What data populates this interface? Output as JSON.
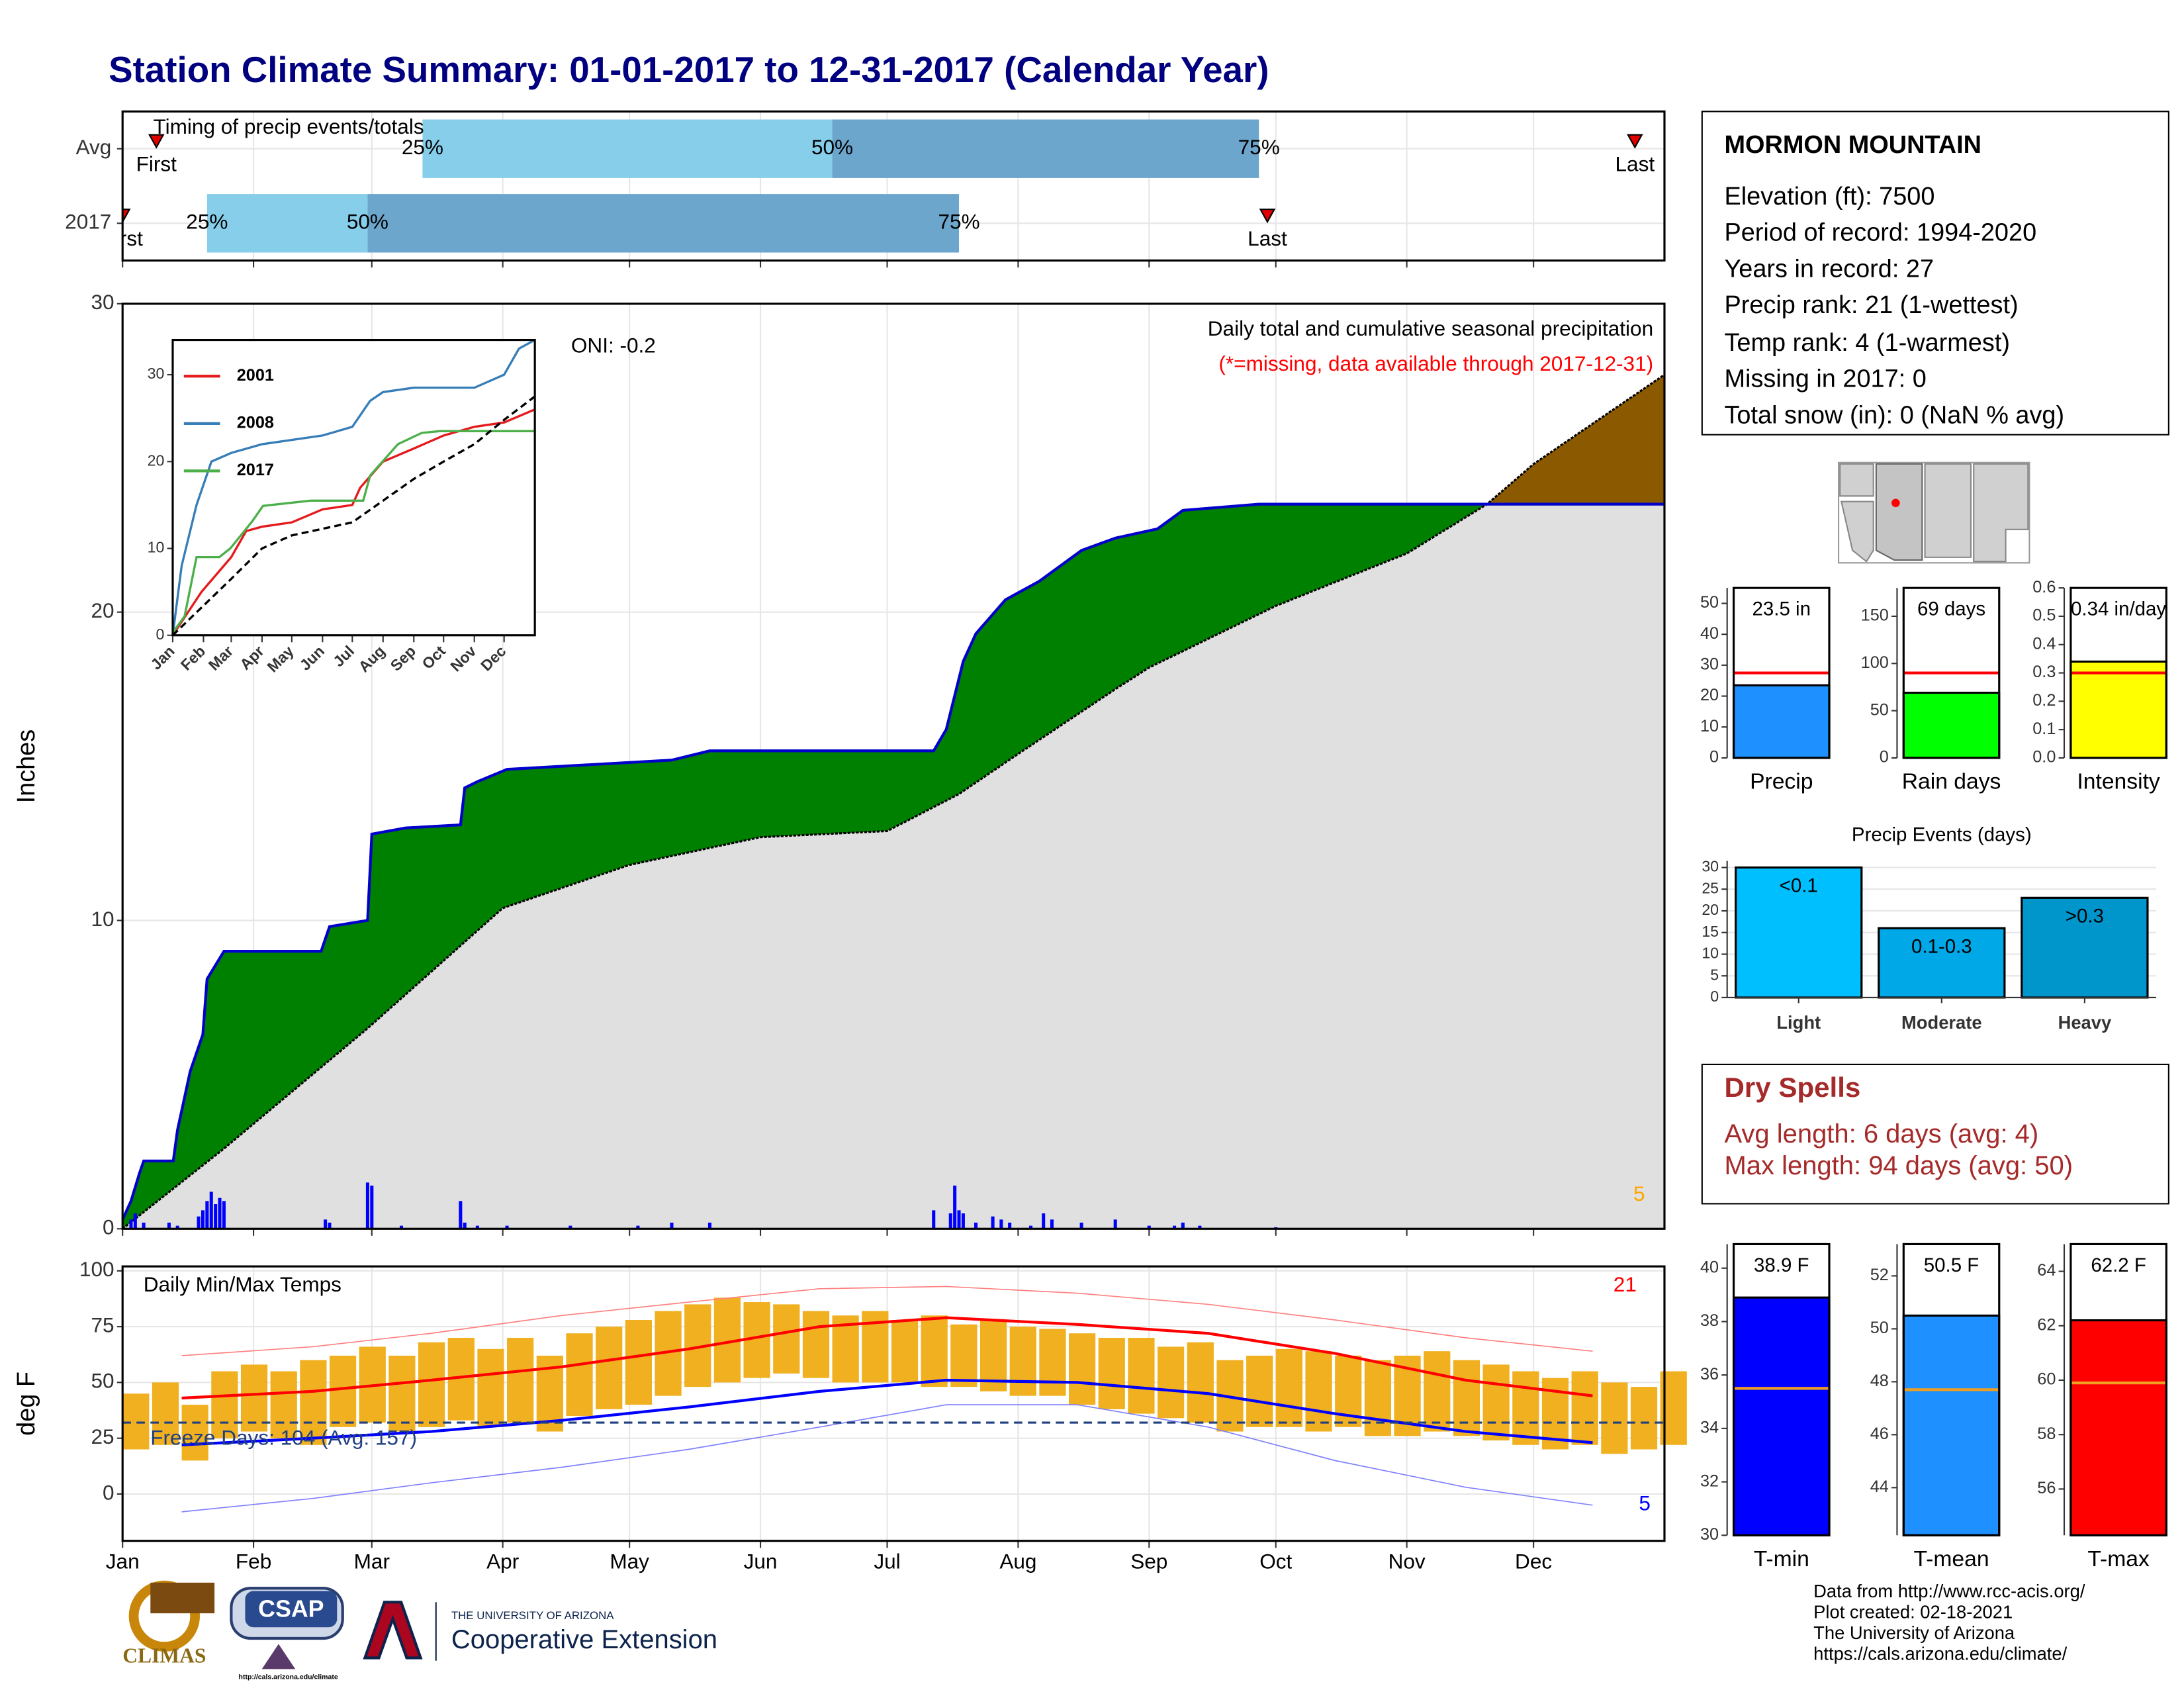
{
  "title": "Station Climate Summary: 01-01-2017 to 12-31-2017 (Calendar Year)",
  "station": {
    "name": "MORMON MOUNTAIN",
    "lines": [
      "Elevation (ft): 7500",
      "Period of record: 1994-2020",
      "Years in record: 27",
      "Precip rank: 21 (1-wettest)",
      "Temp rank: 4 (1-warmest)",
      "Missing in 2017: 0",
      "Total snow (in): 0 (NaN % avg)"
    ]
  },
  "dry_spells": {
    "title": "Dry Spells",
    "lines": [
      "Avg length: 6 days (avg: 4)",
      "Max length: 94 days (avg: 50)"
    ]
  },
  "credits": [
    "Data from http://www.rcc-acis.org/",
    "Plot created: 02-18-2021",
    "The University of Arizona",
    "https://cals.arizona.edu/climate/"
  ],
  "logos": {
    "climas": "CLIMAS",
    "csap": "CSAP",
    "url": "http://cals.arizona.edu/climate",
    "university": "THE UNIVERSITY OF ARIZONA",
    "extension": "Cooperative Extension"
  },
  "chart_data": [
    {
      "type": "timing",
      "title": "Timing of precip events/totals",
      "categories": [
        "Avg",
        "2017"
      ],
      "series": [
        {
          "name": "First",
          "values": [
            9,
            1
          ]
        },
        {
          "name": "25%",
          "values": [
            72,
            21
          ]
        },
        {
          "name": "50%",
          "values": [
            169,
            59
          ]
        },
        {
          "name": "75%",
          "values": [
            270,
            199
          ]
        },
        {
          "name": "Last",
          "values": [
            359,
            272
          ]
        }
      ],
      "colors": [
        "#87ceeb",
        "#6ca6cd"
      ],
      "marker_color": "#e00000",
      "xlim": [
        1,
        366
      ],
      "xticks": [
        1,
        32,
        60,
        91,
        121,
        152,
        182,
        213,
        244,
        274,
        305,
        335
      ],
      "grid": true
    },
    {
      "type": "cumulative",
      "y_label": "Inches",
      "annotations": [
        "ONI: -0.2",
        "Daily total and cumulative seasonal precipitation",
        "(*=missing, data available through 2017-12-31)",
        "5"
      ],
      "annotation_colors": [
        "#000000",
        "#000000",
        "#ff0000",
        "#ffa500"
      ],
      "xlim": [
        1,
        366
      ],
      "ylim": [
        0,
        30
      ],
      "yticks": [
        0,
        10,
        20,
        30
      ],
      "xticks": [
        1,
        32,
        60,
        91,
        121,
        152,
        182,
        213,
        244,
        274,
        305,
        335
      ],
      "grid": true,
      "above_color": "#008000",
      "below_color": "#8b5a00",
      "normal_fill": "#e0e0e0",
      "observed": {
        "color": "#0000cc",
        "x": [
          1,
          3,
          5,
          6,
          13,
          14,
          17,
          20,
          21,
          25,
          48,
          50,
          59,
          60,
          68,
          81,
          82,
          85,
          92,
          131,
          140,
          193,
          196,
          200,
          203,
          210,
          218,
          228,
          236,
          246,
          252,
          270,
          366
        ],
        "values": [
          0.3,
          0.9,
          1.8,
          2.2,
          2.2,
          3.2,
          5.1,
          6.3,
          8.1,
          9.0,
          9.0,
          9.8,
          10.0,
          12.8,
          13.0,
          13.1,
          14.3,
          14.5,
          14.9,
          15.2,
          15.5,
          15.5,
          16.2,
          18.4,
          19.3,
          20.4,
          21.0,
          22.0,
          22.4,
          22.7,
          23.3,
          23.5,
          23.5
        ]
      },
      "normal": {
        "color": "#000000",
        "x": [
          1,
          25,
          59,
          91,
          121,
          152,
          182,
          199,
          213,
          236,
          244,
          274,
          305,
          324,
          335,
          366
        ],
        "values": [
          0,
          2.6,
          6.5,
          10.4,
          11.8,
          12.7,
          12.9,
          14.1,
          15.4,
          17.5,
          18.2,
          20.2,
          21.9,
          23.5,
          24.8,
          27.7
        ]
      },
      "daily": {
        "color": "#0000ff",
        "x": [
          3,
          4,
          6,
          12,
          14,
          19,
          20,
          21,
          22,
          23,
          24,
          25,
          49,
          50,
          59,
          60,
          67,
          81,
          82,
          85,
          92,
          107,
          123,
          131,
          140,
          193,
          197,
          198,
          199,
          200,
          203,
          207,
          209,
          211,
          216,
          219,
          221,
          228,
          236,
          244,
          250,
          252,
          256,
          274
        ],
        "values": [
          0.3,
          0.5,
          0.2,
          0.2,
          0.1,
          0.4,
          0.6,
          0.9,
          1.2,
          0.8,
          1.0,
          0.9,
          0.3,
          0.2,
          1.5,
          1.4,
          0.1,
          0.9,
          0.2,
          0.1,
          0.1,
          0.1,
          0.1,
          0.2,
          0.2,
          0.6,
          0.5,
          1.4,
          0.6,
          0.5,
          0.2,
          0.4,
          0.3,
          0.2,
          0.1,
          0.5,
          0.3,
          0.2,
          0.3,
          0.1,
          0.1,
          0.2,
          0.1,
          0.05
        ]
      }
    },
    {
      "type": "line",
      "xlim": [
        1,
        366
      ],
      "ylim": [
        0,
        34
      ],
      "yticks": [
        0,
        10,
        20,
        30
      ],
      "xticks": [
        {
          "value": 1,
          "label": "Jan"
        },
        {
          "value": 32,
          "label": "Feb"
        },
        {
          "value": 60,
          "label": "Mar"
        },
        {
          "value": 91,
          "label": "Apr"
        },
        {
          "value": 121,
          "label": "May"
        },
        {
          "value": 152,
          "label": "Jun"
        },
        {
          "value": 182,
          "label": "Jul"
        },
        {
          "value": 213,
          "label": "Aug"
        },
        {
          "value": 244,
          "label": "Sep"
        },
        {
          "value": 274,
          "label": "Oct"
        },
        {
          "value": 305,
          "label": "Nov"
        },
        {
          "value": 335,
          "label": "Dec"
        }
      ],
      "series": [
        {
          "name": "2001",
          "color": "#e41a1c",
          "x": [
            1,
            30,
            60,
            75,
            91,
            121,
            152,
            182,
            190,
            213,
            244,
            274,
            305,
            335,
            366
          ],
          "values": [
            0,
            5,
            9,
            12,
            12.5,
            13,
            14.5,
            15,
            17,
            20,
            21.5,
            23,
            24,
            24.5,
            26
          ]
        },
        {
          "name": "2008",
          "color": "#377eb8",
          "x": [
            1,
            10,
            25,
            40,
            60,
            91,
            152,
            182,
            200,
            213,
            244,
            305,
            335,
            350,
            366
          ],
          "values": [
            0,
            8,
            15,
            20,
            21,
            22,
            23,
            24,
            27,
            28,
            28.5,
            28.5,
            30,
            33,
            34
          ]
        },
        {
          "name": "2017",
          "color": "#4daf4a",
          "x": [
            1,
            13,
            25,
            48,
            59,
            81,
            92,
            140,
            193,
            200,
            228,
            252,
            270,
            366
          ],
          "values": [
            0.3,
            2.2,
            9,
            9,
            10,
            13.1,
            14.9,
            15.5,
            15.5,
            18.4,
            22,
            23.3,
            23.5,
            23.5
          ]
        },
        {
          "color": "#000000",
          "dashed": true,
          "x": [
            1,
            60,
            91,
            121,
            182,
            213,
            244,
            274,
            305,
            335,
            366
          ],
          "values": [
            0,
            6.5,
            10,
            11.5,
            13,
            15.5,
            18,
            20,
            22,
            24.8,
            27.5
          ]
        }
      ]
    },
    {
      "type": "temperature",
      "title": "Daily Min/Max Temps",
      "y_label": "deg F",
      "annotations": [
        "21",
        "5"
      ],
      "annotation_colors": [
        "#ff0000",
        "#0000ff"
      ],
      "freeze_label": "Freeze Days: 104 (Avg: 157)",
      "freeze_line": 32,
      "freeze_color": "#1f3f7f",
      "xlim": [
        1,
        366
      ],
      "ylim": [
        -21,
        102
      ],
      "yticks": [
        0,
        25,
        50,
        75,
        100
      ],
      "grid": true,
      "xticks": [
        {
          "value": 1,
          "label": "Jan"
        },
        {
          "value": 32,
          "label": "Feb"
        },
        {
          "value": 60,
          "label": "Mar"
        },
        {
          "value": 91,
          "label": "Apr"
        },
        {
          "value": 121,
          "label": "May"
        },
        {
          "value": 152,
          "label": "Jun"
        },
        {
          "value": 182,
          "label": "Jul"
        },
        {
          "value": 213,
          "label": "Aug"
        },
        {
          "value": 244,
          "label": "Sep"
        },
        {
          "value": 274,
          "label": "Oct"
        },
        {
          "value": 305,
          "label": "Nov"
        },
        {
          "value": 335,
          "label": "Dec"
        }
      ],
      "daily": {
        "color": "#f0b020",
        "x": [
          1,
          8,
          15,
          22,
          29,
          36,
          43,
          50,
          57,
          64,
          71,
          78,
          85,
          92,
          99,
          106,
          113,
          120,
          127,
          134,
          141,
          148,
          155,
          162,
          169,
          176,
          183,
          190,
          197,
          204,
          211,
          218,
          225,
          232,
          239,
          246,
          253,
          260,
          267,
          274,
          281,
          288,
          295,
          302,
          309,
          316,
          323,
          330,
          337,
          344,
          351,
          358,
          365
        ],
        "max": [
          45,
          50,
          40,
          55,
          58,
          55,
          60,
          62,
          66,
          62,
          68,
          70,
          65,
          70,
          62,
          72,
          75,
          78,
          82,
          85,
          88,
          86,
          85,
          82,
          80,
          82,
          78,
          80,
          76,
          78,
          75,
          74,
          72,
          70,
          70,
          66,
          68,
          60,
          62,
          65,
          64,
          62,
          60,
          62,
          64,
          60,
          58,
          55,
          52,
          55,
          50,
          48,
          55
        ],
        "min": [
          20,
          22,
          15,
          25,
          28,
          25,
          22,
          30,
          32,
          28,
          30,
          33,
          30,
          32,
          28,
          35,
          38,
          40,
          44,
          48,
          50,
          52,
          54,
          52,
          50,
          50,
          50,
          48,
          48,
          46,
          44,
          44,
          40,
          38,
          36,
          34,
          32,
          28,
          30,
          30,
          28,
          30,
          26,
          26,
          28,
          26,
          24,
          22,
          20,
          22,
          18,
          20,
          22
        ]
      },
      "record_max": {
        "color": "#ff8080",
        "x": [
          15,
          46,
          74,
          105,
          135,
          166,
          196,
          227,
          258,
          288,
          319,
          349
        ],
        "values": [
          62,
          66,
          72,
          80,
          86,
          92,
          93,
          90,
          85,
          78,
          70,
          64
        ]
      },
      "record_min": {
        "color": "#8080ff",
        "x": [
          15,
          46,
          74,
          105,
          135,
          166,
          196,
          227,
          258,
          288,
          319,
          349
        ],
        "values": [
          -8,
          -2,
          5,
          12,
          20,
          30,
          40,
          40,
          30,
          15,
          3,
          -5
        ]
      },
      "normal_max": {
        "color": "#ff0000",
        "x": [
          15,
          46,
          74,
          105,
          135,
          166,
          196,
          227,
          258,
          288,
          319,
          349
        ],
        "values": [
          43,
          46,
          51,
          57,
          65,
          75,
          79,
          76,
          72,
          63,
          51,
          44
        ]
      },
      "normal_min": {
        "color": "#0000ff",
        "x": [
          15,
          46,
          74,
          105,
          135,
          166,
          196,
          227,
          258,
          288,
          319,
          349
        ],
        "values": [
          22,
          25,
          28,
          33,
          39,
          46,
          51,
          50,
          45,
          36,
          28,
          23
        ]
      }
    },
    {
      "type": "bar",
      "categories": [
        "Precip"
      ],
      "values": [
        23.5
      ],
      "value_labels": [
        "23.5 in"
      ],
      "average": [
        27.5
      ],
      "avg_color": "#ff0000",
      "color": "#1e90ff",
      "ylim": [
        0,
        55
      ],
      "yticks": [
        0,
        10,
        20,
        30,
        40,
        50
      ]
    },
    {
      "type": "bar",
      "categories": [
        "Rain days"
      ],
      "values": [
        69
      ],
      "value_labels": [
        "69 days"
      ],
      "average": [
        90
      ],
      "avg_color": "#ff0000",
      "color": "#00ff00",
      "ylim": [
        0,
        180
      ],
      "yticks": [
        0,
        50,
        100,
        150
      ]
    },
    {
      "type": "bar",
      "categories": [
        "Intensity"
      ],
      "values": [
        0.34
      ],
      "value_labels": [
        "0.34 in/day"
      ],
      "average": [
        0.3
      ],
      "avg_color": "#ff0000",
      "color": "#ffff00",
      "ylim": [
        0,
        0.6
      ],
      "yticks": [
        {
          "value": 0,
          "label": "0.0"
        },
        0.1,
        0.2,
        0.3,
        0.4,
        0.5,
        0.6
      ]
    },
    {
      "type": "bar",
      "title": "Precip Events (days)",
      "categories": [
        "Light",
        "Moderate",
        "Heavy"
      ],
      "values": [
        30,
        16,
        23
      ],
      "bar_labels": [
        "<0.1",
        "0.1-0.3",
        ">0.3"
      ],
      "colors": [
        "#00bfff",
        "#00a8e8",
        "#0096cc"
      ],
      "ylim": [
        0,
        31.5
      ],
      "yticks": [
        0,
        5,
        10,
        15,
        20,
        25,
        30
      ],
      "grid": true
    },
    {
      "type": "bar",
      "categories": [
        "T-min"
      ],
      "values": [
        38.9
      ],
      "value_labels": [
        "38.9 F"
      ],
      "average": [
        35.5
      ],
      "avg_color": "#f0a020",
      "color": "#0000ff",
      "ylim": [
        30,
        40.9
      ],
      "yticks": [
        30,
        32,
        34,
        36,
        38,
        40
      ]
    },
    {
      "type": "bar",
      "categories": [
        "T-mean"
      ],
      "values": [
        50.5
      ],
      "value_labels": [
        "50.5 F"
      ],
      "average": [
        47.7
      ],
      "avg_color": "#f0a020",
      "color": "#1e90ff",
      "ylim": [
        42.2,
        53.2
      ],
      "yticks": [
        44,
        46,
        48,
        50,
        52
      ]
    },
    {
      "type": "bar",
      "categories": [
        "T-max"
      ],
      "values": [
        62.2
      ],
      "value_labels": [
        "62.2 F"
      ],
      "average": [
        59.9
      ],
      "avg_color": "#f0a020",
      "color": "#ff0000",
      "ylim": [
        54.3,
        65
      ],
      "yticks": [
        56,
        58,
        60,
        62,
        64
      ]
    }
  ]
}
